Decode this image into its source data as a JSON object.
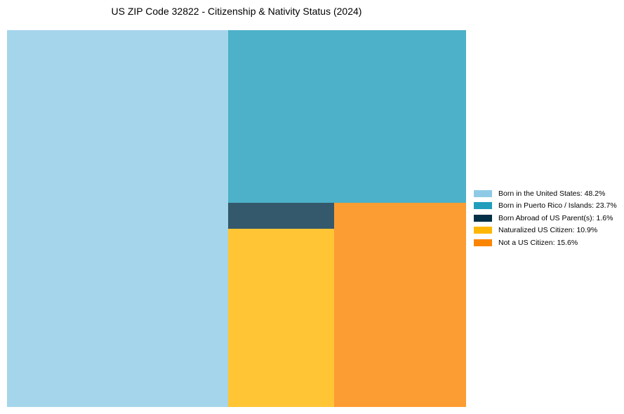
{
  "chart_data": {
    "type": "treemap",
    "title": "US ZIP Code 32822 - Citizenship & Nativity Status (2024)",
    "unit": "%",
    "categories": [
      "Born in the United States",
      "Born in Puerto Rico / Islands",
      "Born Abroad of US Parent(s)",
      "Naturalized US Citizen",
      "Not a US Citizen"
    ],
    "values": [
      48.2,
      23.7,
      1.6,
      10.9,
      15.6
    ],
    "colors": [
      "#8ecae6",
      "#219ebc",
      "#023047",
      "#ffb703",
      "#fb8500"
    ],
    "tile_opacity": 0.8,
    "legend_position": "center-right"
  }
}
